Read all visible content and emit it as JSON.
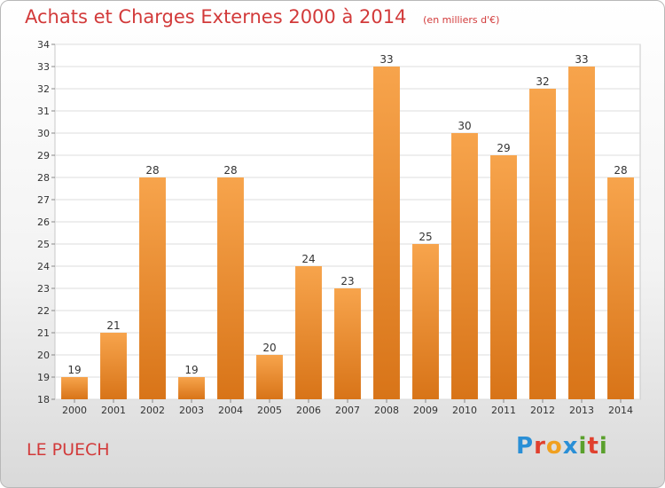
{
  "header": {
    "title": "Achats et Charges Externes 2000 à 2014",
    "subtitle": "(en milliers d'€)"
  },
  "footer": {
    "place": "LE PUECH"
  },
  "logo": {
    "text": "Proxiti",
    "letters": [
      "P",
      "r",
      "o",
      "x",
      "i",
      "t",
      "i"
    ],
    "colors": [
      "#2a8fd6",
      "#e0402e",
      "#f0a020",
      "#2a8fd6",
      "#5aa02c",
      "#e0402e",
      "#5aa02c"
    ]
  },
  "chart_data": {
    "type": "bar",
    "title": "Achats et Charges Externes 2000 à 2014",
    "subtitle": "(en milliers d'€)",
    "categories": [
      "2000",
      "2001",
      "2002",
      "2003",
      "2004",
      "2005",
      "2006",
      "2007",
      "2008",
      "2009",
      "2010",
      "2011",
      "2012",
      "2013",
      "2014"
    ],
    "values": [
      19,
      21,
      28,
      19,
      28,
      20,
      24,
      23,
      33,
      25,
      30,
      29,
      32,
      33,
      28
    ],
    "ylim": [
      18,
      34
    ],
    "yticks": [
      18,
      19,
      20,
      21,
      22,
      23,
      24,
      25,
      26,
      27,
      28,
      29,
      30,
      31,
      32,
      33,
      34
    ],
    "grid": true,
    "bar_color_top": "#f7a44c",
    "bar_color_bottom": "#d87418"
  }
}
